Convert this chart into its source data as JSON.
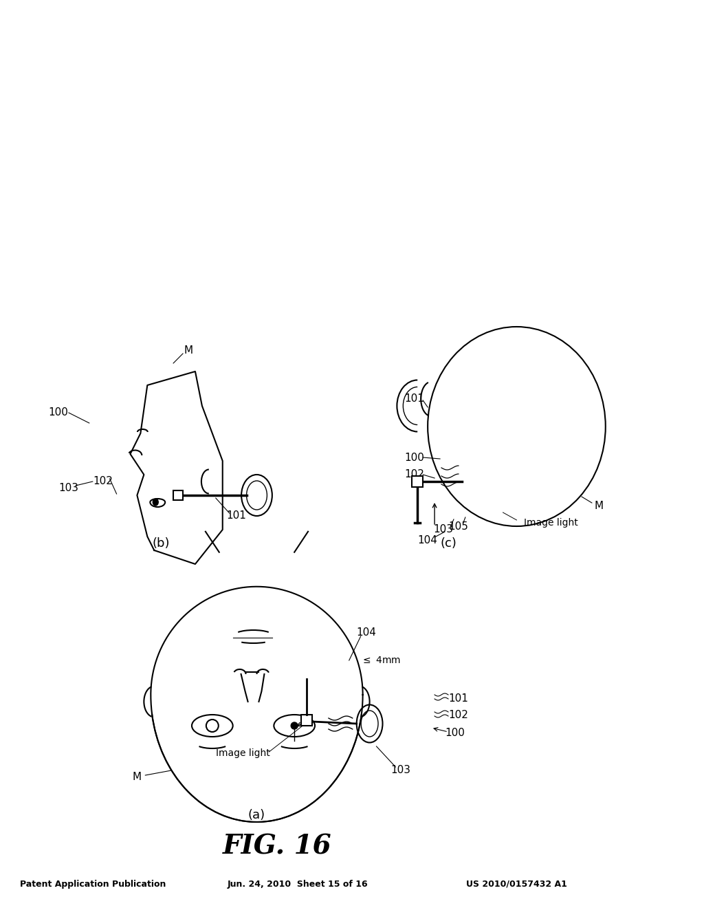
{
  "bg_color": "#ffffff",
  "title_fig": "FIG. 16",
  "header_left": "Patent Application Publication",
  "header_mid": "Jun. 24, 2010  Sheet 15 of 16",
  "header_right": "US 2010/0157432 A1",
  "label_a": "(a)",
  "label_b": "(b)",
  "label_c": "(c)",
  "line_color": "#000000",
  "line_width": 1.5
}
